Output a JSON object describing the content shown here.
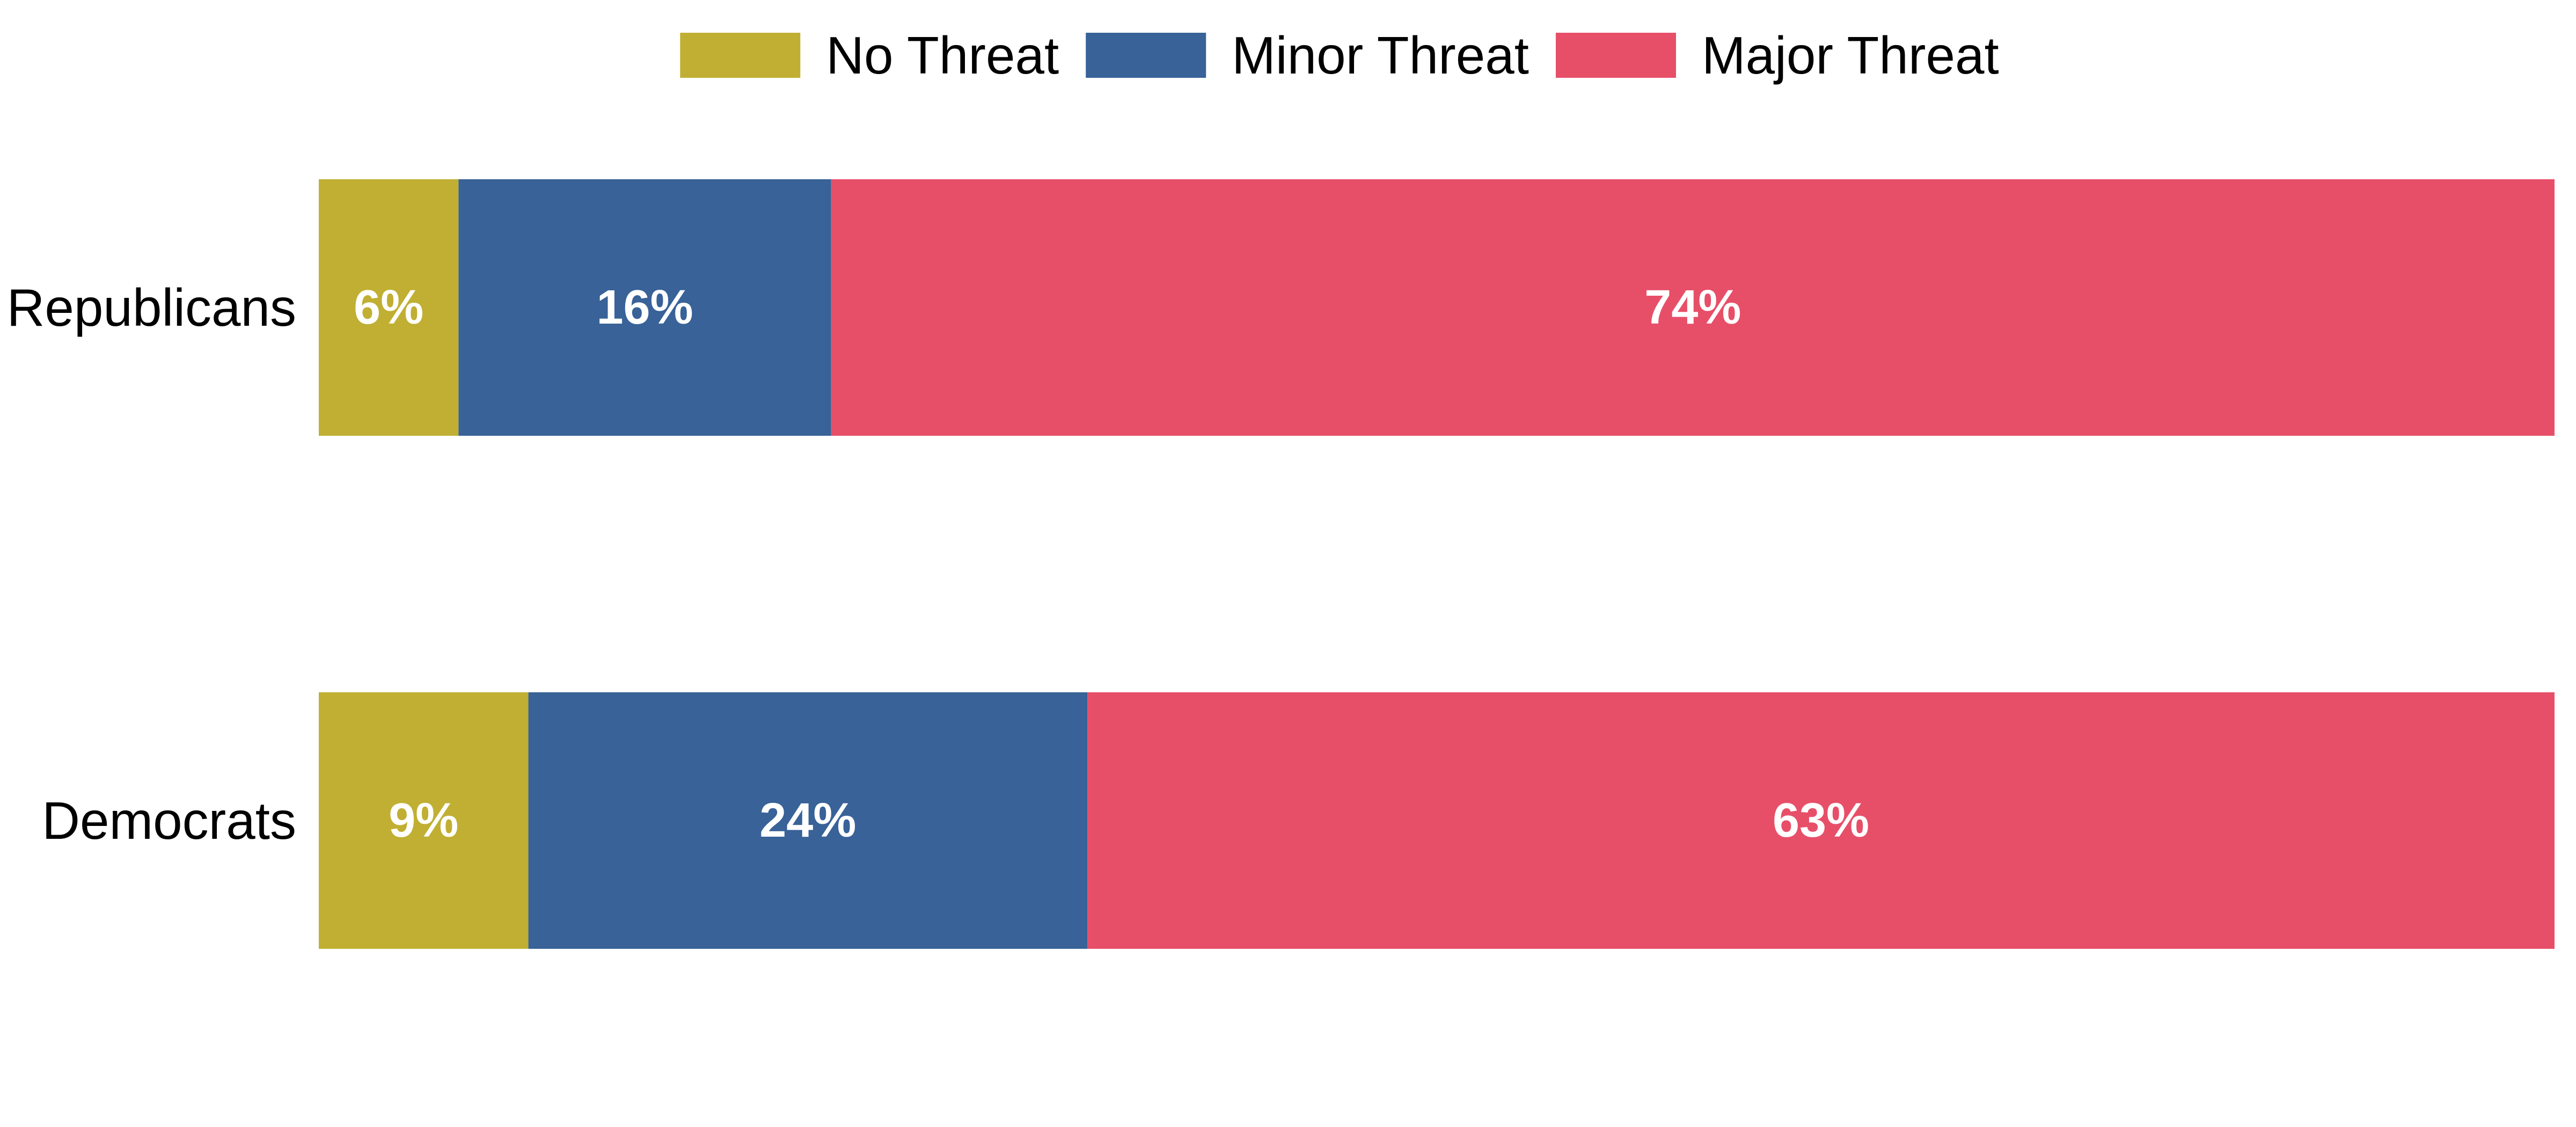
{
  "chart_data": {
    "type": "bar",
    "orientation": "horizontal",
    "stacked": true,
    "categories": [
      "Republicans",
      "Democrats"
    ],
    "series": [
      {
        "name": "No Threat",
        "color": "#C1AF33",
        "values": [
          6,
          9
        ],
        "labels": [
          "6%",
          "9%"
        ]
      },
      {
        "name": "Minor Threat",
        "color": "#386298",
        "values": [
          16,
          24
        ],
        "labels": [
          "16%",
          "24%"
        ]
      },
      {
        "name": "Major Threat",
        "color": "#E74F69",
        "values": [
          74,
          63
        ],
        "labels": [
          "74%",
          "63%"
        ]
      }
    ],
    "xlim": [
      0,
      96
    ],
    "legend_position": "top",
    "grid": false,
    "axes_visible": false
  }
}
